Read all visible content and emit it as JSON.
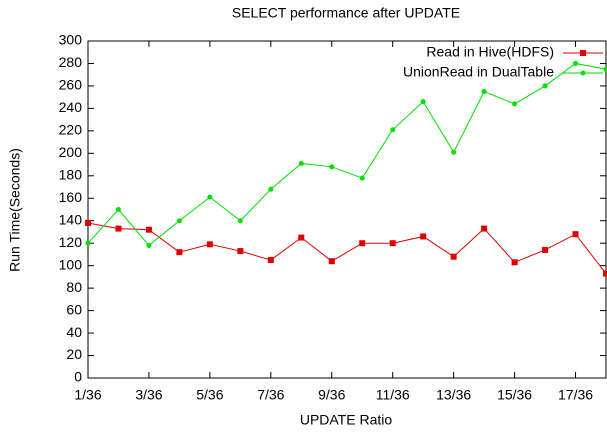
{
  "chart_data": {
    "type": "line",
    "title": "SELECT performance after UPDATE",
    "x_label": "UPDATE Ratio",
    "y_label": "Run Time(Seconds)",
    "categories": [
      "1/36",
      null,
      "3/36",
      null,
      "5/36",
      null,
      "7/36",
      null,
      "9/36",
      null,
      "11/36",
      null,
      "13/36",
      null,
      "15/36",
      null,
      "17/36",
      null
    ],
    "series": [
      {
        "name": "Read in Hive(HDFS)",
        "color": "#e00000",
        "marker": "square",
        "values": [
          138,
          133,
          132,
          112,
          119,
          113,
          105,
          125,
          104,
          120,
          120,
          126,
          108,
          133,
          103,
          114,
          128,
          93
        ]
      },
      {
        "name": "UnionRead in DualTable",
        "color": "#00e000",
        "marker": "circle",
        "values": [
          120,
          150,
          118,
          140,
          161,
          140,
          168,
          191,
          188,
          178,
          221,
          246,
          201,
          255,
          244,
          260,
          280,
          275
        ]
      }
    ],
    "ylim": [
      0,
      300
    ],
    "yticks": [
      0,
      20,
      40,
      60,
      80,
      100,
      120,
      140,
      160,
      180,
      200,
      220,
      240,
      260,
      280,
      300
    ],
    "legend": "top-right",
    "grid": false
  }
}
